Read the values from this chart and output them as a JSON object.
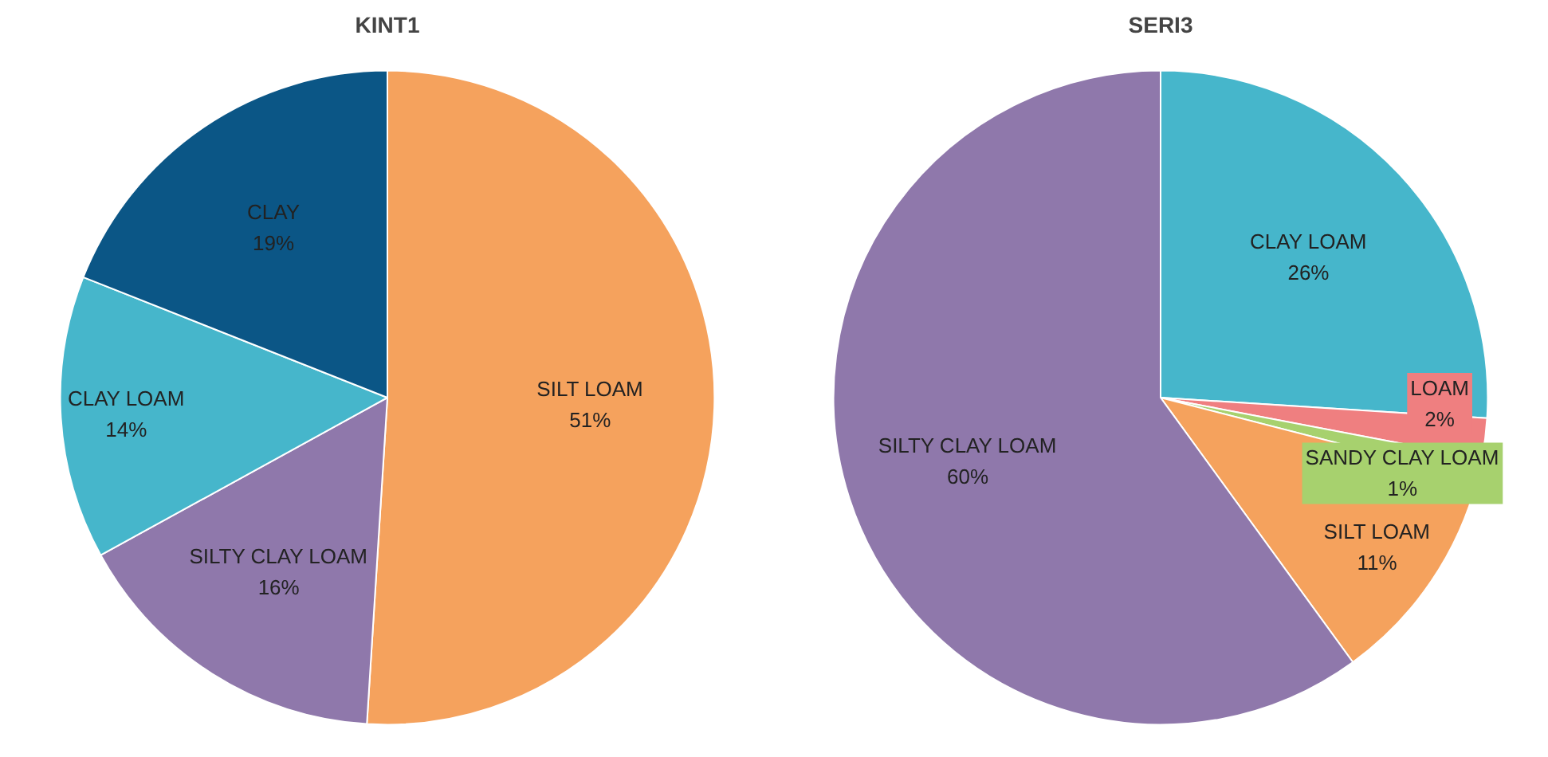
{
  "chart_data": [
    {
      "type": "pie",
      "title": "KINT1",
      "categories": [
        "SILT LOAM",
        "SILTY CLAY LOAM",
        "CLAY LOAM",
        "CLAY"
      ],
      "values": [
        51,
        16,
        14,
        19
      ],
      "colors": [
        "#f5a25d",
        "#8f78ab",
        "#46b6cb",
        "#0b5686"
      ],
      "value_labels": [
        "51%",
        "16%",
        "14%",
        "19%"
      ]
    },
    {
      "type": "pie",
      "title": "SERI3",
      "categories": [
        "CLAY LOAM",
        "LOAM",
        "SANDY CLAY LOAM",
        "SILT LOAM",
        "SILTY CLAY LOAM"
      ],
      "values": [
        26,
        2,
        1,
        11,
        60
      ],
      "colors": [
        "#46b6cb",
        "#ef7f80",
        "#a7d16e",
        "#f5a25d",
        "#8f78ab"
      ],
      "value_labels": [
        "26%",
        "2%",
        "1%",
        "11%",
        "60%"
      ]
    }
  ]
}
